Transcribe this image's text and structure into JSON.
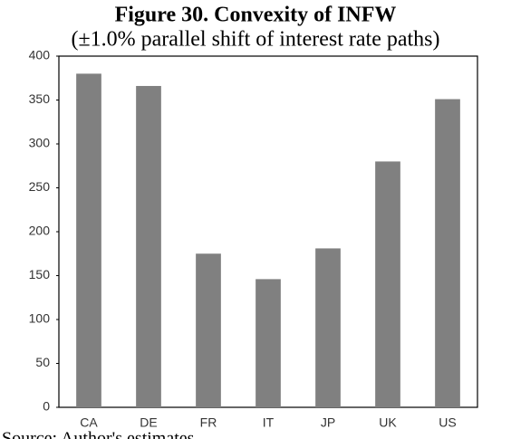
{
  "chart_data": {
    "type": "bar",
    "title": "Figure 30. Convexity of INFW",
    "subtitle": "(±1.0% parallel shift of interest rate paths)",
    "categories": [
      "CA",
      "DE",
      "FR",
      "IT",
      "JP",
      "UK",
      "US"
    ],
    "values": [
      380,
      366,
      175,
      146,
      181,
      280,
      351
    ],
    "color": "#808080",
    "ylim": [
      0,
      400
    ],
    "yticks": [
      0,
      50,
      100,
      150,
      200,
      250,
      300,
      350,
      400
    ],
    "grid": false,
    "source": "Source: Author's estimates"
  }
}
